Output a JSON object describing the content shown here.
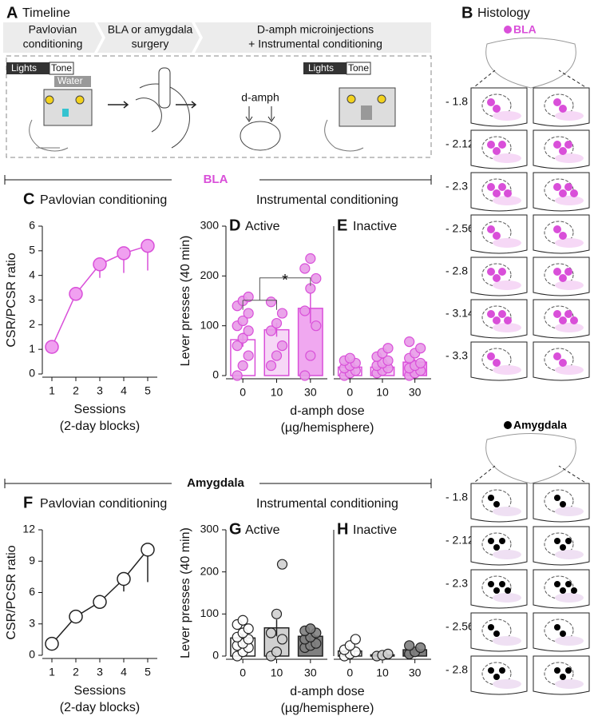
{
  "timeline": {
    "panel": "A",
    "title": "Timeline",
    "steps": [
      [
        "Pavlovian",
        "conditioning"
      ],
      [
        "BLA or amygdala",
        "surgery"
      ],
      [
        "D-amph microinjections",
        "+ Instrumental conditioning"
      ]
    ],
    "lights": "Lights",
    "tone": "Tone",
    "water": "Water",
    "drug": "d-amph"
  },
  "histology": {
    "panel": "B",
    "title": "Histology",
    "groups": [
      {
        "name": "BLA",
        "color": "#d94fd9",
        "levels": [
          "- 1.8",
          "- 2.12",
          "- 2.3",
          "- 2.56",
          "- 2.8",
          "- 3.14",
          "- 3.3"
        ]
      },
      {
        "name": "Amygdala",
        "color": "#000000",
        "levels": [
          "- 1.8",
          "- 2.12",
          "- 2.3",
          "- 2.56",
          "- 2.8"
        ]
      }
    ]
  },
  "sections": [
    "BLA",
    "Amygdala"
  ],
  "chart_data": [
    {
      "type": "line",
      "panel": "C",
      "title": "Pavlovian conditioning",
      "ylabel": "CSR/PCSR ratio",
      "xlabel": [
        "Sessions",
        "(2-day blocks)"
      ],
      "x": [
        1,
        2,
        3,
        4,
        5
      ],
      "values": [
        1.1,
        3.25,
        4.45,
        4.9,
        5.2
      ],
      "errors": [
        0.1,
        0.2,
        0.55,
        0.8,
        1.0
      ],
      "color": "#f0a0f0",
      "edge_color": "#d94fd9",
      "xlim": [
        0.6,
        5.4
      ],
      "xticks": [
        1,
        2,
        3,
        4,
        5
      ],
      "ylim": [
        0,
        6
      ],
      "yticks": [
        0,
        1,
        2,
        3,
        4,
        5,
        6
      ]
    },
    {
      "type": "bar",
      "panel": "D",
      "title": "Active",
      "group_title": "Instrumental conditioning",
      "ylabel": "Lever presses (40 min)",
      "xlabel": [
        "d-amph dose",
        "(µg/hemisphere)"
      ],
      "annotation": "*",
      "categories": [
        "0",
        "10",
        "30"
      ],
      "values": [
        72,
        92,
        135
      ],
      "errors": [
        14,
        14,
        30
      ],
      "points": [
        [
          0,
          20,
          40,
          60,
          75,
          90,
          100,
          110,
          125,
          140,
          150,
          158
        ],
        [
          20,
          40,
          60,
          90,
          105,
          125,
          148
        ],
        [
          0,
          40,
          100,
          130,
          175,
          195,
          215,
          235
        ]
      ],
      "colors": [
        "#ffffff",
        "#f6d8f6",
        "#f0a8f0"
      ],
      "edge_color": "#d94fd9",
      "point_color": "#e89be8",
      "ylim": [
        0,
        300
      ],
      "yticks": [
        0,
        100,
        200,
        300
      ]
    },
    {
      "type": "bar",
      "panel": "E",
      "title": "Inactive",
      "categories": [
        "0",
        "10",
        "30"
      ],
      "values": [
        17,
        17,
        27
      ],
      "errors": [
        4,
        4,
        6
      ],
      "points": [
        [
          0,
          5,
          10,
          15,
          20,
          25,
          30,
          35
        ],
        [
          5,
          10,
          15,
          20,
          25,
          30,
          38,
          45,
          55
        ],
        [
          0,
          5,
          10,
          15,
          20,
          25,
          35,
          45,
          55,
          68
        ]
      ],
      "colors": [
        "#ffffff",
        "#f6d8f6",
        "#f0a8f0"
      ],
      "edge_color": "#d94fd9",
      "point_color": "#e89be8",
      "ylim": [
        0,
        300
      ]
    },
    {
      "type": "line",
      "panel": "F",
      "title": "Pavlovian conditioning",
      "ylabel": "CSR/PCSR ratio",
      "xlabel": [
        "Sessions",
        "(2-day blocks)"
      ],
      "x": [
        1,
        2,
        3,
        4,
        5
      ],
      "values": [
        1.1,
        3.7,
        5.1,
        7.3,
        10.1
      ],
      "errors": [
        0.2,
        0.3,
        0.6,
        1.2,
        3.1
      ],
      "color": "#ffffff",
      "edge_color": "#222222",
      "xlim": [
        0.6,
        5.4
      ],
      "xticks": [
        1,
        2,
        3,
        4,
        5
      ],
      "ylim": [
        0,
        12
      ],
      "yticks": [
        0,
        3,
        6,
        9,
        12
      ]
    },
    {
      "type": "bar",
      "panel": "G",
      "title": "Active",
      "group_title": "Instrumental conditioning",
      "ylabel": "Lever presses (40 min)",
      "xlabel": [
        "d-amph dose",
        "(µg/hemisphere)"
      ],
      "categories": [
        "0",
        "10",
        "30"
      ],
      "values": [
        43,
        67,
        47
      ],
      "errors": [
        10,
        20,
        10
      ],
      "points": [
        [
          0,
          10,
          20,
          25,
          30,
          40,
          45,
          55,
          65,
          75,
          85
        ],
        [
          0,
          10,
          40,
          55,
          100,
          218
        ],
        [
          20,
          25,
          30,
          40,
          45,
          55,
          60,
          65
        ]
      ],
      "colors": [
        "#ffffff",
        "#d0d0d0",
        "#808080"
      ],
      "edge_color": "#222222",
      "ylim": [
        0,
        300
      ],
      "yticks": [
        0,
        100,
        200,
        300
      ]
    },
    {
      "type": "bar",
      "panel": "H",
      "title": "Inactive",
      "categories": [
        "0",
        "10",
        "30"
      ],
      "values": [
        12,
        3,
        15
      ],
      "errors": [
        5,
        1,
        4
      ],
      "points": [
        [
          0,
          5,
          10,
          15,
          25,
          40
        ],
        [
          0,
          2,
          5
        ],
        [
          5,
          10,
          20,
          25
        ]
      ],
      "colors": [
        "#ffffff",
        "#d0d0d0",
        "#808080"
      ],
      "edge_color": "#222222",
      "ylim": [
        0,
        300
      ]
    }
  ]
}
